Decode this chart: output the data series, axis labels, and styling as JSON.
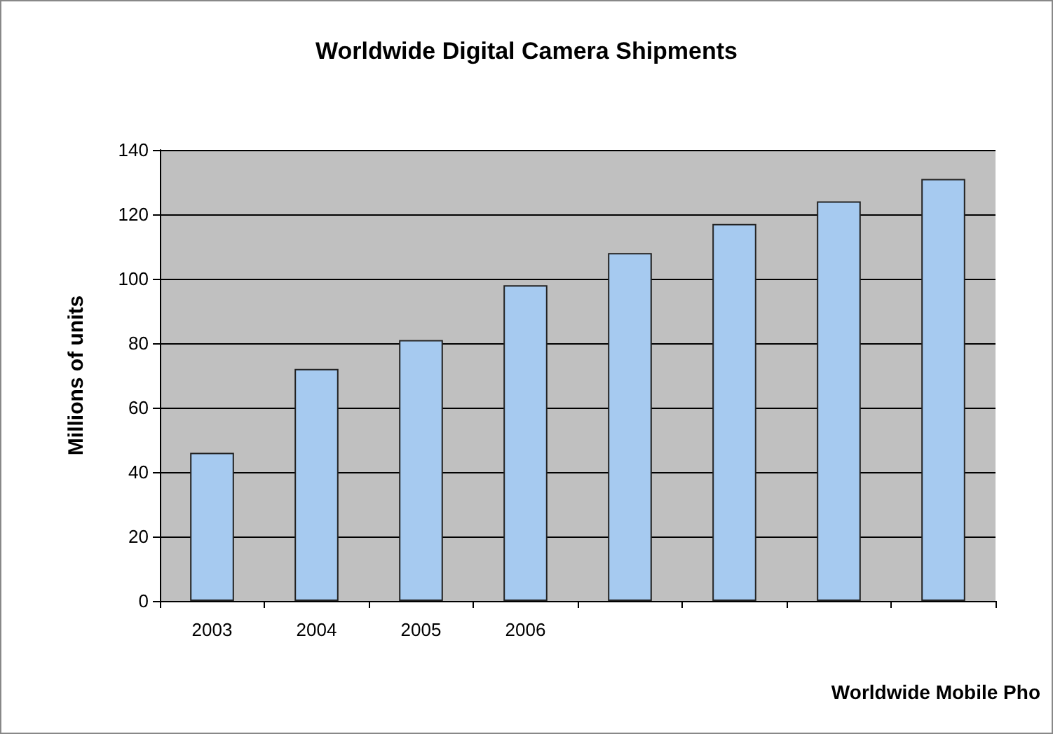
{
  "chart_data": {
    "type": "bar",
    "title": "Worldwide Digital Camera Shipments",
    "ylabel": "Millions of units",
    "categories": [
      "2003",
      "2004",
      "2005",
      "2006",
      null,
      null,
      null,
      null
    ],
    "values": [
      46,
      72,
      81,
      98,
      108,
      117,
      124,
      131
    ],
    "color": "#a6caf0",
    "ylim": [
      0,
      140
    ],
    "yticks": [
      0,
      20,
      40,
      60,
      80,
      100,
      120,
      140
    ],
    "grid": "y",
    "annotations": [
      "Worldwide Mobile Pho"
    ]
  }
}
